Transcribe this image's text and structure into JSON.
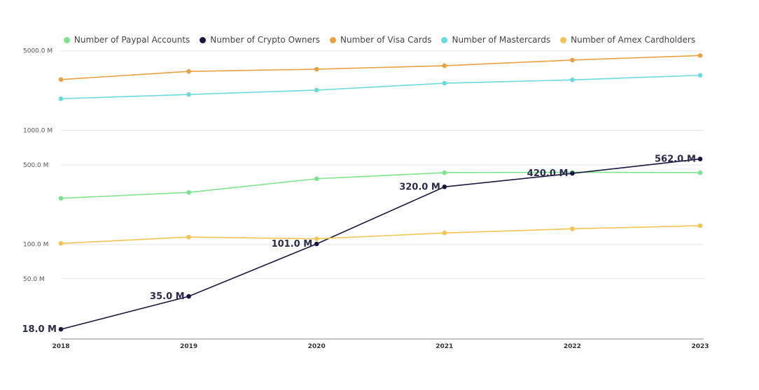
{
  "chart_data": {
    "type": "line",
    "title": "",
    "xlabel": "",
    "ylabel": "",
    "y_scale": "log",
    "ylim": [
      15,
      5500
    ],
    "grid": true,
    "legend_position": "top",
    "x": [
      "2018",
      "2019",
      "2020",
      "2021",
      "2022",
      "2023"
    ],
    "y_ticks": [
      {
        "value": 5000,
        "label": "5000.0 M"
      },
      {
        "value": 1000,
        "label": "1000.0 M"
      },
      {
        "value": 500,
        "label": "500.0 M"
      },
      {
        "value": 100,
        "label": "100.0 M"
      },
      {
        "value": 50,
        "label": "50.0 M"
      }
    ],
    "series": [
      {
        "name": "Number of Paypal Accounts",
        "color": "#7ee38f",
        "values": [
          254,
          286,
          377,
          426,
          430,
          426
        ]
      },
      {
        "name": "Number of Crypto Owners",
        "color": "#1a1640",
        "values": [
          18,
          35,
          101,
          320,
          420,
          562
        ],
        "data_labels": [
          "18.0 M",
          "35.0 M",
          "101.0 M",
          "320.0 M",
          "420.0 M",
          "562.0.M"
        ]
      },
      {
        "name": "Number of Visa Cards",
        "color": "#e8a040",
        "values": [
          2800,
          3300,
          3450,
          3700,
          4150,
          4550
        ]
      },
      {
        "name": "Number of Mastercards",
        "color": "#6cdadc",
        "values": [
          1900,
          2070,
          2260,
          2600,
          2780,
          3050
        ]
      },
      {
        "name": "Number of Amex Cardholders",
        "color": "#f2c453",
        "values": [
          102,
          116,
          112,
          126,
          137,
          146
        ]
      }
    ]
  }
}
